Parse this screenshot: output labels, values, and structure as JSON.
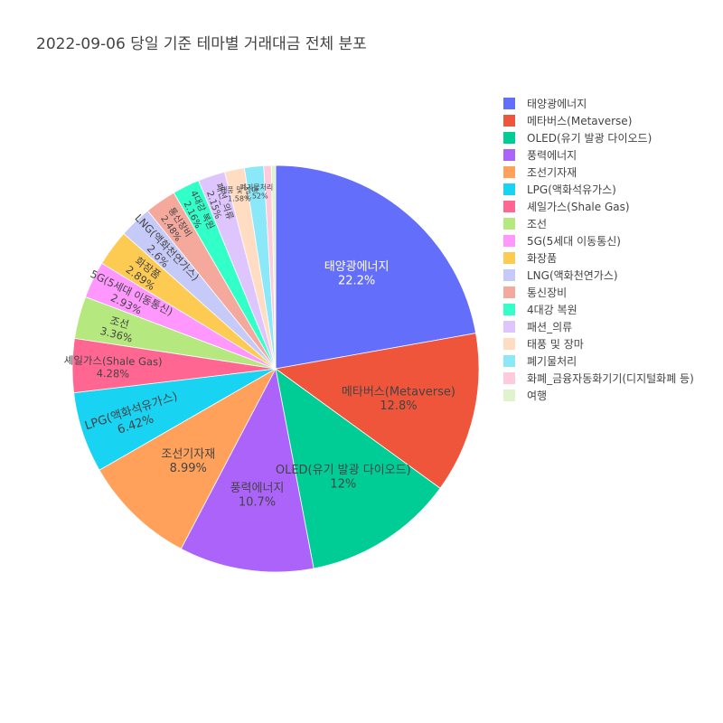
{
  "chart_data": {
    "type": "pie",
    "title": "2022-09-06 당일 기준 테마별 거래대금 전체 분포",
    "slices": [
      {
        "label": "태양광에너지",
        "percent": "22.2%",
        "value": 22.2,
        "color": "#636efa"
      },
      {
        "label": "메타버스(Metaverse)",
        "percent": "12.8%",
        "value": 12.8,
        "color": "#ef553b"
      },
      {
        "label": "OLED(유기 발광 다이오드)",
        "percent": "12%",
        "value": 12.0,
        "color": "#00cc96"
      },
      {
        "label": "풍력에너지",
        "percent": "10.7%",
        "value": 10.7,
        "color": "#ab63fa"
      },
      {
        "label": "조선기자재",
        "percent": "8.99%",
        "value": 8.99,
        "color": "#ffa15a"
      },
      {
        "label": "LPG(액화석유가스)",
        "percent": "6.42%",
        "value": 6.42,
        "color": "#19d3f3"
      },
      {
        "label": "셰일가스(Shale Gas)",
        "percent": "4.28%",
        "value": 4.28,
        "color": "#ff6692"
      },
      {
        "label": "조선",
        "percent": "3.36%",
        "value": 3.36,
        "color": "#b6e880"
      },
      {
        "label": "5G(5세대 이동통신)",
        "percent": "2.93%",
        "value": 2.93,
        "color": "#ff97ff"
      },
      {
        "label": "화장품",
        "percent": "2.89%",
        "value": 2.89,
        "color": "#fecb52"
      },
      {
        "label": "LNG(액화천연가스)",
        "percent": "2.6%",
        "value": 2.6,
        "color": "#c6caf8"
      },
      {
        "label": "통신장비",
        "percent": "2.48%",
        "value": 2.48,
        "color": "#f5a99d"
      },
      {
        "label": "4대강 복원",
        "percent": "2.16%",
        "value": 2.16,
        "color": "#33ffc8"
      },
      {
        "label": "패션_의류",
        "percent": "2.15%",
        "value": 2.15,
        "color": "#dec5fd"
      },
      {
        "label": "태풍 및 장마",
        "percent": "1.58%",
        "value": 1.58,
        "color": "#ffdcc2"
      },
      {
        "label": "폐기물처리",
        "percent": "1.52%",
        "value": 1.52,
        "color": "#8be8f8"
      },
      {
        "label": "화폐_금융자동화기기(디지털화폐 등)",
        "percent": "",
        "value": 0.6,
        "color": "#ffcadb"
      },
      {
        "label": "여행",
        "percent": "",
        "value": 0.34,
        "color": "#e1f3cd"
      }
    ],
    "legend_placement": "right",
    "direction": "clockwise",
    "start": "12 o'clock"
  }
}
